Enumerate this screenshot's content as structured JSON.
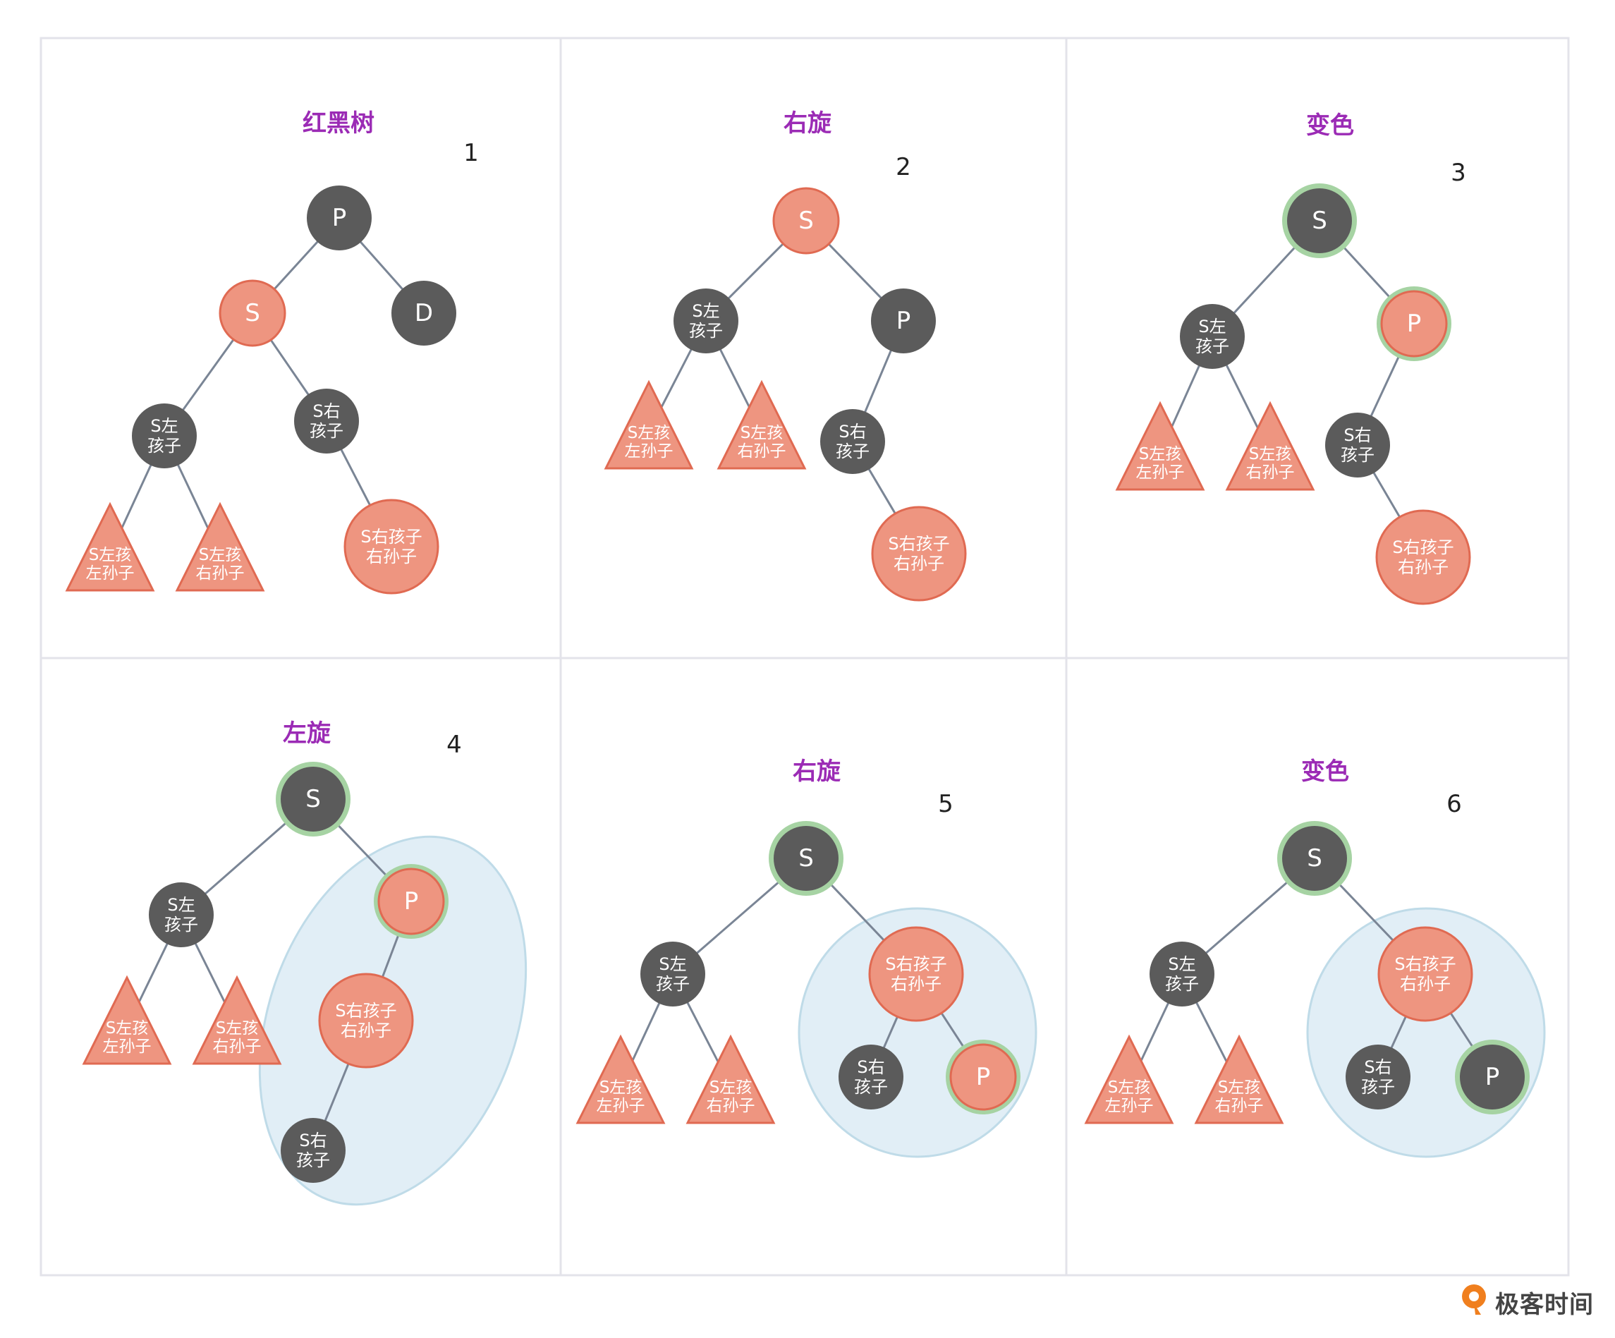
{
  "colors": {
    "grid_border": "#e3e3ea",
    "title": "#9b2bb5",
    "number": "#222222",
    "black_node": "#5b5b5b",
    "red_node": "#ee9580",
    "red_node_stroke": "#e06a52",
    "highlight_ring": "#a6d3a3",
    "edge": "#7a8595",
    "ellipse_fill": "#e1eef6",
    "ellipse_stroke": "#bfdbe8",
    "brand_orange": "#f07f1e",
    "brand_text": "#444444"
  },
  "panels": [
    {
      "title": "红黑树",
      "number": "1",
      "nodes": [
        {
          "id": "P",
          "label": "P",
          "color": "black"
        },
        {
          "id": "S",
          "label": "S",
          "color": "red"
        },
        {
          "id": "D",
          "label": "D",
          "color": "black"
        },
        {
          "id": "SL",
          "label": "S左\n孩子",
          "color": "black"
        },
        {
          "id": "SR",
          "label": "S右\n孩子",
          "color": "black"
        },
        {
          "id": "SLL",
          "label": "S左孩\n左孙子",
          "color": "red",
          "shape": "triangle"
        },
        {
          "id": "SLR",
          "label": "S左孩\n右孙子",
          "color": "red",
          "shape": "triangle"
        },
        {
          "id": "SRR",
          "label": "S右孩子\n右孙子",
          "color": "red",
          "shape": "big"
        }
      ]
    },
    {
      "title": "右旋",
      "number": "2",
      "nodes": [
        {
          "id": "S",
          "label": "S",
          "color": "red"
        },
        {
          "id": "SL",
          "label": "S左\n孩子",
          "color": "black"
        },
        {
          "id": "P",
          "label": "P",
          "color": "black"
        },
        {
          "id": "SLL",
          "label": "S左孩\n左孙子",
          "color": "red",
          "shape": "triangle"
        },
        {
          "id": "SLR",
          "label": "S左孩\n右孙子",
          "color": "red",
          "shape": "triangle"
        },
        {
          "id": "SR",
          "label": "S右\n孩子",
          "color": "black"
        },
        {
          "id": "SRR",
          "label": "S右孩子\n右孙子",
          "color": "red",
          "shape": "big"
        }
      ]
    },
    {
      "title": "变色",
      "number": "3",
      "nodes": [
        {
          "id": "S",
          "label": "S",
          "color": "black",
          "highlight": true
        },
        {
          "id": "SL",
          "label": "S左\n孩子",
          "color": "black"
        },
        {
          "id": "P",
          "label": "P",
          "color": "red",
          "highlight": true
        },
        {
          "id": "SLL",
          "label": "S左孩\n左孙子",
          "color": "red",
          "shape": "triangle"
        },
        {
          "id": "SLR",
          "label": "S左孩\n右孙子",
          "color": "red",
          "shape": "triangle"
        },
        {
          "id": "SR",
          "label": "S右\n孩子",
          "color": "black"
        },
        {
          "id": "SRR",
          "label": "S右孩子\n右孙子",
          "color": "red",
          "shape": "big"
        }
      ]
    },
    {
      "title": "左旋",
      "number": "4",
      "nodes": [
        {
          "id": "S",
          "label": "S",
          "color": "black",
          "highlight": true
        },
        {
          "id": "SL",
          "label": "S左\n孩子",
          "color": "black"
        },
        {
          "id": "P",
          "label": "P",
          "color": "red",
          "highlight": true
        },
        {
          "id": "SLL",
          "label": "S左孩\n左孙子",
          "color": "red",
          "shape": "triangle"
        },
        {
          "id": "SLR",
          "label": "S左孩\n右孙子",
          "color": "red",
          "shape": "triangle"
        },
        {
          "id": "SRR",
          "label": "S右孩子\n右孙子",
          "color": "red",
          "shape": "big"
        },
        {
          "id": "SR",
          "label": "S右\n孩子",
          "color": "black"
        }
      ]
    },
    {
      "title": "右旋",
      "number": "5",
      "nodes": [
        {
          "id": "S",
          "label": "S",
          "color": "black",
          "highlight": true
        },
        {
          "id": "SL",
          "label": "S左\n孩子",
          "color": "black"
        },
        {
          "id": "SRR",
          "label": "S右孩子\n右孙子",
          "color": "red",
          "shape": "big"
        },
        {
          "id": "SLL",
          "label": "S左孩\n左孙子",
          "color": "red",
          "shape": "triangle"
        },
        {
          "id": "SLR",
          "label": "S左孩\n右孙子",
          "color": "red",
          "shape": "triangle"
        },
        {
          "id": "SR",
          "label": "S右\n孩子",
          "color": "black"
        },
        {
          "id": "P",
          "label": "P",
          "color": "red",
          "highlight": true
        }
      ]
    },
    {
      "title": "变色",
      "number": "6",
      "nodes": [
        {
          "id": "S",
          "label": "S",
          "color": "black",
          "highlight": true
        },
        {
          "id": "SL",
          "label": "S左\n孩子",
          "color": "black"
        },
        {
          "id": "SRR",
          "label": "S右孩子\n右孙子",
          "color": "red",
          "shape": "big"
        },
        {
          "id": "SLL",
          "label": "S左孩\n左孙子",
          "color": "red",
          "shape": "triangle"
        },
        {
          "id": "SLR",
          "label": "S左孩\n右孙子",
          "color": "red",
          "shape": "triangle"
        },
        {
          "id": "SR",
          "label": "S右\n孩子",
          "color": "black"
        },
        {
          "id": "P",
          "label": "P",
          "color": "black",
          "highlight": true
        }
      ]
    }
  ],
  "brand": {
    "name": "极客时间"
  }
}
